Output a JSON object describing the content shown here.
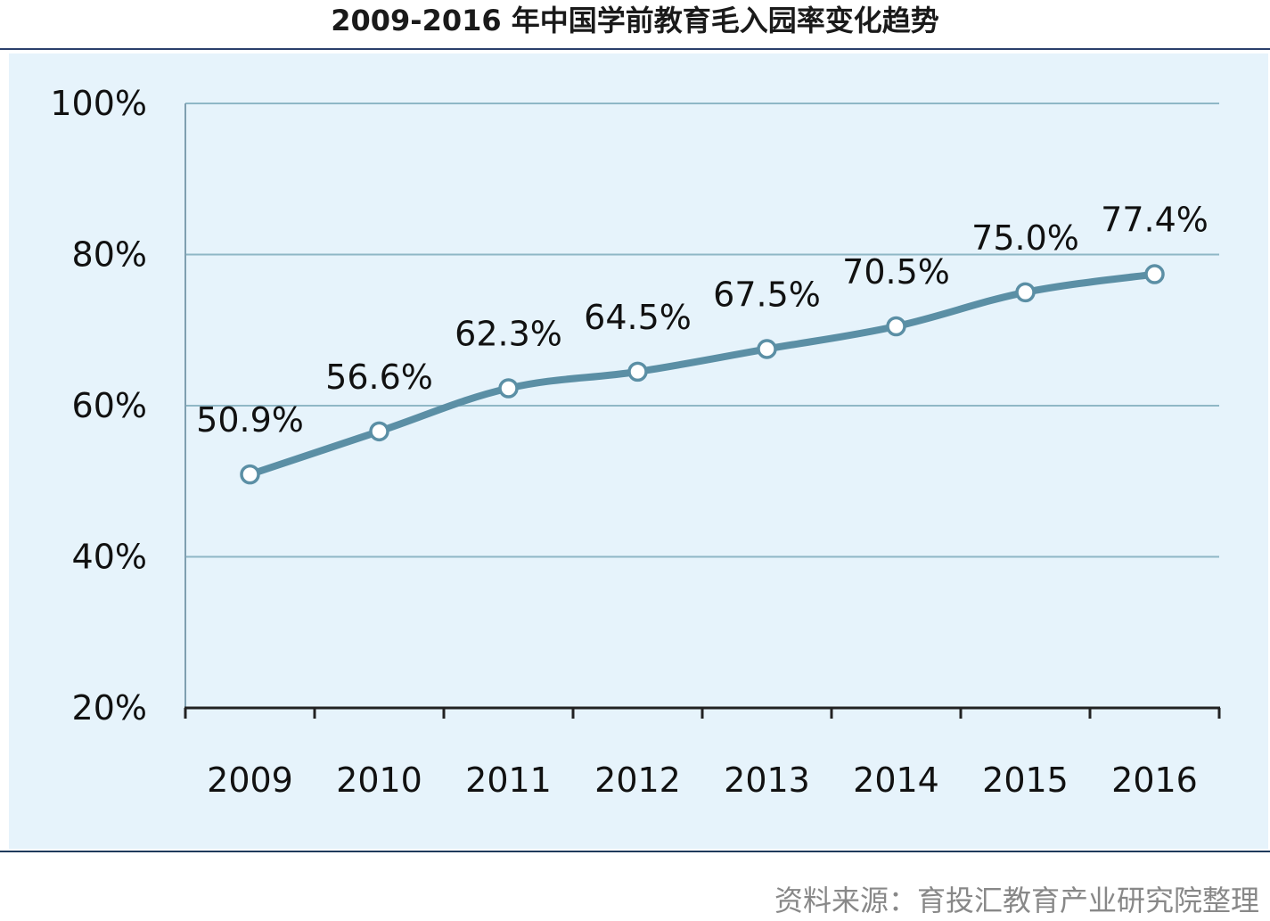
{
  "title": "2009-2016 年中国学前教育毛入园率变化趋势",
  "source": "资料来源：育投汇教育产业研究院整理",
  "chart_data": {
    "type": "line",
    "title": "2009-2016 年中国学前教育毛入园率变化趋势",
    "xlabel": "",
    "ylabel": "",
    "categories": [
      "2009",
      "2010",
      "2011",
      "2012",
      "2013",
      "2014",
      "2015",
      "2016"
    ],
    "values": [
      50.9,
      56.6,
      62.3,
      64.5,
      67.5,
      70.5,
      75.0,
      77.4
    ],
    "data_labels": [
      "50.9%",
      "56.6%",
      "62.3%",
      "64.5%",
      "67.5%",
      "70.5%",
      "75.0%",
      "77.4%"
    ],
    "ylim": [
      20,
      100
    ],
    "yticks": [
      {
        "value": 20,
        "label": "20%"
      },
      {
        "value": 40,
        "label": "40%"
      },
      {
        "value": 60,
        "label": "60%"
      },
      {
        "value": 80,
        "label": "80%"
      },
      {
        "value": 100,
        "label": "100%"
      }
    ],
    "grid": true,
    "legend": "none",
    "colors": {
      "line": "#5b8fa5",
      "grid": "#8fb7c6",
      "background": "#e6f3fb",
      "marker_fill": "#ffffff"
    }
  }
}
